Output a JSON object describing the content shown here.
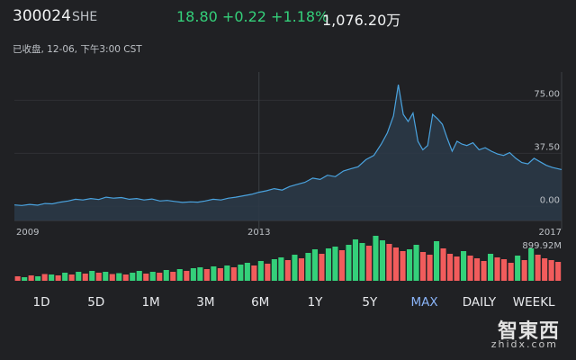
{
  "quote": {
    "symbol": "300024",
    "exchange": "SHE",
    "price": "18.80",
    "change": "+0.22",
    "change_pct": "+1.18%",
    "volume": "1,076.20万",
    "status": "已收盘, 12-06, 下午3:00 CST",
    "up_color": "#34d07a",
    "down_color": "#f25c5c"
  },
  "chart_data": {
    "type": "line",
    "x_ticks": [
      "2009",
      "2013",
      "2017"
    ],
    "y_ticks": [
      "75.00",
      "37.50",
      "0.00"
    ],
    "ylim": [
      -10,
      95
    ],
    "xlim": [
      2009.0,
      2017.95
    ],
    "volume_label": "899.92M",
    "price_series": [
      [
        2009.0,
        1.0
      ],
      [
        2009.12,
        0.6
      ],
      [
        2009.25,
        1.4
      ],
      [
        2009.38,
        0.8
      ],
      [
        2009.5,
        2.0
      ],
      [
        2009.62,
        1.8
      ],
      [
        2009.75,
        3.0
      ],
      [
        2009.88,
        3.8
      ],
      [
        2010.0,
        5.0
      ],
      [
        2010.12,
        4.5
      ],
      [
        2010.25,
        5.5
      ],
      [
        2010.38,
        4.8
      ],
      [
        2010.5,
        6.5
      ],
      [
        2010.62,
        5.8
      ],
      [
        2010.75,
        6.2
      ],
      [
        2010.88,
        5.0
      ],
      [
        2011.0,
        5.5
      ],
      [
        2011.12,
        4.5
      ],
      [
        2011.25,
        5.2
      ],
      [
        2011.38,
        3.8
      ],
      [
        2011.5,
        4.2
      ],
      [
        2011.62,
        3.5
      ],
      [
        2011.75,
        2.8
      ],
      [
        2011.88,
        3.2
      ],
      [
        2012.0,
        3.0
      ],
      [
        2012.12,
        3.8
      ],
      [
        2012.25,
        5.0
      ],
      [
        2012.38,
        4.5
      ],
      [
        2012.5,
        5.8
      ],
      [
        2012.62,
        6.5
      ],
      [
        2012.75,
        7.5
      ],
      [
        2012.88,
        8.5
      ],
      [
        2013.0,
        10.0
      ],
      [
        2013.12,
        11.0
      ],
      [
        2013.25,
        12.5
      ],
      [
        2013.38,
        11.5
      ],
      [
        2013.5,
        14.0
      ],
      [
        2013.62,
        15.5
      ],
      [
        2013.75,
        17.0
      ],
      [
        2013.88,
        20.0
      ],
      [
        2014.0,
        19.0
      ],
      [
        2014.12,
        22.0
      ],
      [
        2014.25,
        21.0
      ],
      [
        2014.38,
        25.0
      ],
      [
        2014.5,
        26.5
      ],
      [
        2014.62,
        28.0
      ],
      [
        2014.75,
        33.0
      ],
      [
        2014.88,
        36.0
      ],
      [
        2015.0,
        44.0
      ],
      [
        2015.1,
        52.0
      ],
      [
        2015.2,
        64.0
      ],
      [
        2015.28,
        86.0
      ],
      [
        2015.36,
        65.0
      ],
      [
        2015.44,
        60.0
      ],
      [
        2015.52,
        66.0
      ],
      [
        2015.6,
        46.0
      ],
      [
        2015.68,
        40.0
      ],
      [
        2015.76,
        43.0
      ],
      [
        2015.84,
        65.0
      ],
      [
        2015.92,
        62.0
      ],
      [
        2016.0,
        58.0
      ],
      [
        2016.08,
        48.0
      ],
      [
        2016.16,
        39.0
      ],
      [
        2016.24,
        46.0
      ],
      [
        2016.32,
        44.0
      ],
      [
        2016.4,
        43.0
      ],
      [
        2016.5,
        45.0
      ],
      [
        2016.6,
        40.0
      ],
      [
        2016.7,
        41.5
      ],
      [
        2016.8,
        39.0
      ],
      [
        2016.9,
        37.0
      ],
      [
        2017.0,
        36.0
      ],
      [
        2017.1,
        38.0
      ],
      [
        2017.2,
        34.0
      ],
      [
        2017.3,
        31.0
      ],
      [
        2017.4,
        30.0
      ],
      [
        2017.5,
        34.0
      ],
      [
        2017.6,
        31.5
      ],
      [
        2017.7,
        29.0
      ],
      [
        2017.8,
        27.5
      ],
      [
        2017.95,
        26.0
      ]
    ],
    "volume_series": [
      [
        0.1,
        "down"
      ],
      [
        0.08,
        "up"
      ],
      [
        0.12,
        "down"
      ],
      [
        0.1,
        "up"
      ],
      [
        0.15,
        "down"
      ],
      [
        0.14,
        "up"
      ],
      [
        0.12,
        "down"
      ],
      [
        0.18,
        "up"
      ],
      [
        0.14,
        "down"
      ],
      [
        0.2,
        "up"
      ],
      [
        0.16,
        "down"
      ],
      [
        0.22,
        "up"
      ],
      [
        0.18,
        "down"
      ],
      [
        0.2,
        "up"
      ],
      [
        0.15,
        "down"
      ],
      [
        0.17,
        "up"
      ],
      [
        0.14,
        "down"
      ],
      [
        0.18,
        "up"
      ],
      [
        0.22,
        "up"
      ],
      [
        0.16,
        "down"
      ],
      [
        0.2,
        "up"
      ],
      [
        0.18,
        "down"
      ],
      [
        0.24,
        "up"
      ],
      [
        0.2,
        "down"
      ],
      [
        0.26,
        "up"
      ],
      [
        0.22,
        "down"
      ],
      [
        0.28,
        "up"
      ],
      [
        0.3,
        "up"
      ],
      [
        0.26,
        "down"
      ],
      [
        0.32,
        "up"
      ],
      [
        0.28,
        "down"
      ],
      [
        0.34,
        "up"
      ],
      [
        0.3,
        "down"
      ],
      [
        0.36,
        "up"
      ],
      [
        0.4,
        "up"
      ],
      [
        0.34,
        "down"
      ],
      [
        0.44,
        "up"
      ],
      [
        0.38,
        "down"
      ],
      [
        0.48,
        "up"
      ],
      [
        0.52,
        "up"
      ],
      [
        0.46,
        "down"
      ],
      [
        0.58,
        "up"
      ],
      [
        0.5,
        "down"
      ],
      [
        0.62,
        "up"
      ],
      [
        0.7,
        "up"
      ],
      [
        0.6,
        "down"
      ],
      [
        0.72,
        "up"
      ],
      [
        0.76,
        "up"
      ],
      [
        0.68,
        "down"
      ],
      [
        0.8,
        "up"
      ],
      [
        0.92,
        "up"
      ],
      [
        0.84,
        "up"
      ],
      [
        0.78,
        "down"
      ],
      [
        1.0,
        "up"
      ],
      [
        0.9,
        "up"
      ],
      [
        0.82,
        "down"
      ],
      [
        0.74,
        "down"
      ],
      [
        0.66,
        "down"
      ],
      [
        0.7,
        "up"
      ],
      [
        0.8,
        "up"
      ],
      [
        0.64,
        "down"
      ],
      [
        0.58,
        "down"
      ],
      [
        0.88,
        "up"
      ],
      [
        0.72,
        "down"
      ],
      [
        0.6,
        "down"
      ],
      [
        0.54,
        "down"
      ],
      [
        0.66,
        "up"
      ],
      [
        0.56,
        "down"
      ],
      [
        0.5,
        "down"
      ],
      [
        0.44,
        "down"
      ],
      [
        0.6,
        "up"
      ],
      [
        0.52,
        "down"
      ],
      [
        0.48,
        "down"
      ],
      [
        0.4,
        "down"
      ],
      [
        0.56,
        "up"
      ],
      [
        0.46,
        "down"
      ],
      [
        0.72,
        "up"
      ],
      [
        0.58,
        "down"
      ],
      [
        0.5,
        "down"
      ],
      [
        0.46,
        "down"
      ],
      [
        0.42,
        "down"
      ]
    ]
  },
  "tabs": [
    {
      "label": "1D",
      "active": false
    },
    {
      "label": "5D",
      "active": false
    },
    {
      "label": "1M",
      "active": false
    },
    {
      "label": "3M",
      "active": false
    },
    {
      "label": "6M",
      "active": false
    },
    {
      "label": "1Y",
      "active": false
    },
    {
      "label": "5Y",
      "active": false
    },
    {
      "label": "MAX",
      "active": true
    },
    {
      "label": "DAILY",
      "active": false
    },
    {
      "label": "WEEKL",
      "active": false
    }
  ],
  "watermark": {
    "cn": "智東西",
    "en": "zhidx.com"
  }
}
